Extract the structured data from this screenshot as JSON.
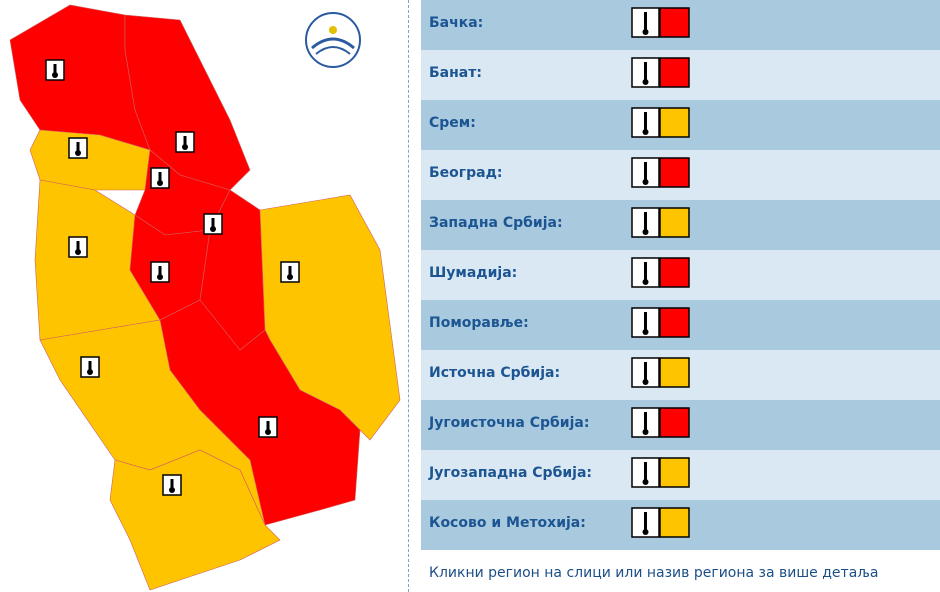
{
  "regions": [
    {
      "name": "Бачка:",
      "color": "#ff0000"
    },
    {
      "name": "Банат:",
      "color": "#ff0000"
    },
    {
      "name": "Срем:",
      "color": "#ffc400"
    },
    {
      "name": "Београд:",
      "color": "#ff0000"
    },
    {
      "name": "Западна Србија:",
      "color": "#ffc400"
    },
    {
      "name": "Шумадија:",
      "color": "#ff0000"
    },
    {
      "name": "Поморавље:",
      "color": "#ff0000"
    },
    {
      "name": "Источна Србија:",
      "color": "#ffc400"
    },
    {
      "name": "Југоисточна Србија:",
      "color": "#ff0000"
    },
    {
      "name": "Југозападна Србија:",
      "color": "#ffc400"
    },
    {
      "name": "Косово и Метохија:",
      "color": "#ffc400"
    }
  ],
  "footer": "Кликни регион на слици или назив региона за више детаља"
}
